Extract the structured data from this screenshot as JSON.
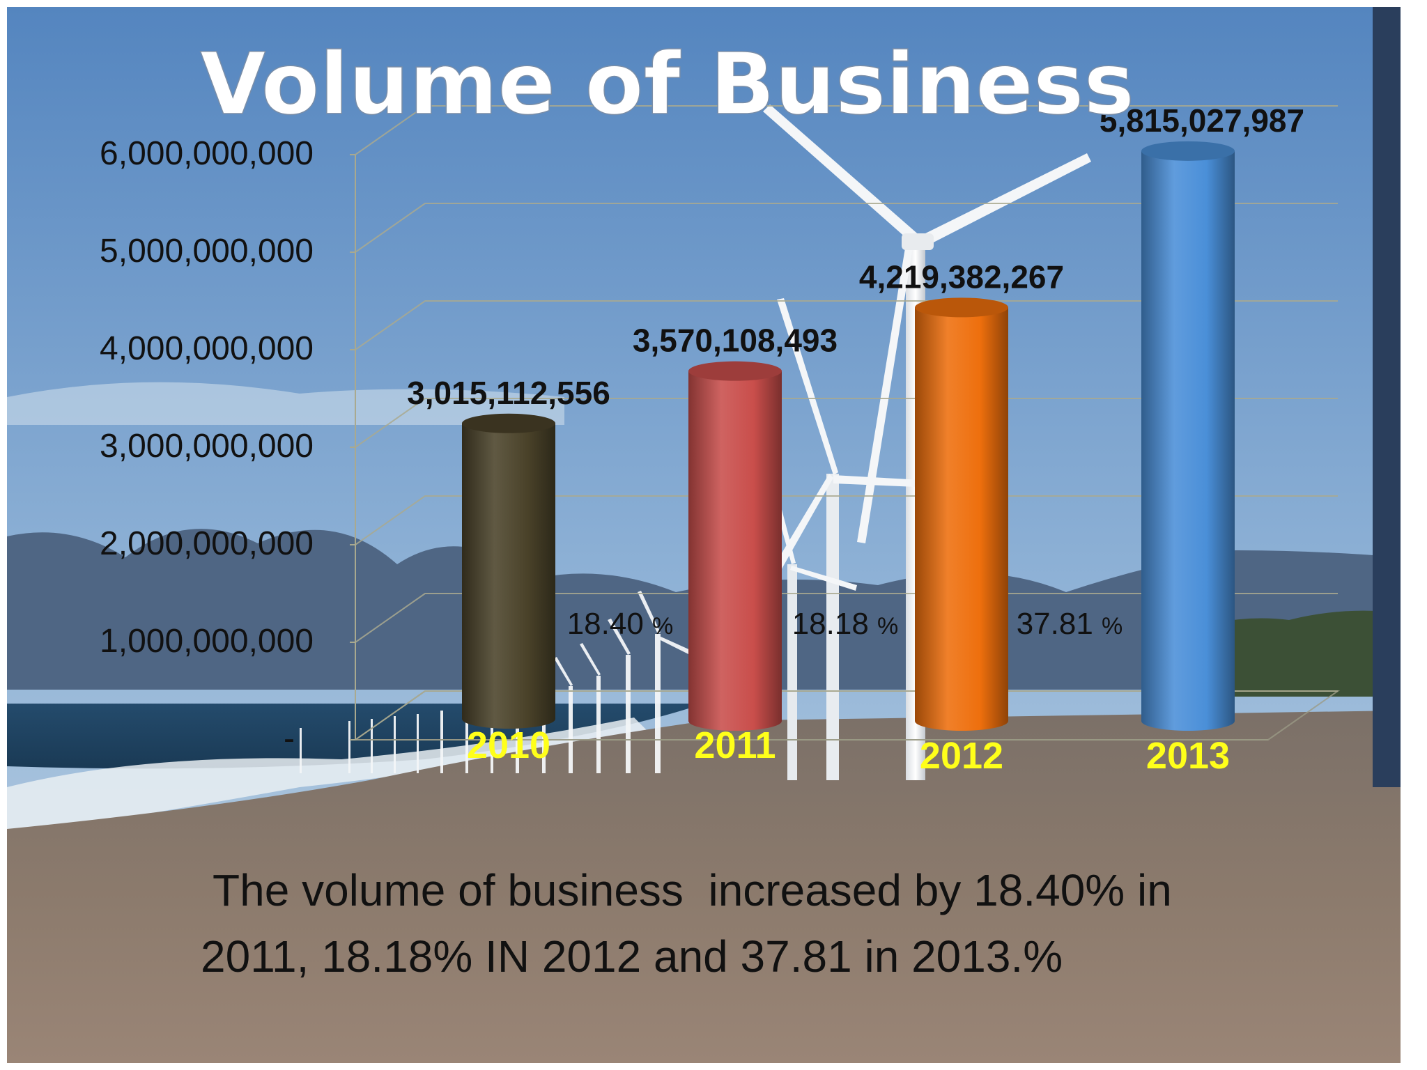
{
  "slide": {
    "title": "Volume of Business",
    "caption_line1": "The volume of business  increased by 18.40% in",
    "caption_line2": "2011, 18.18% IN 2012 and 37.81 in 2013.%"
  },
  "colors": {
    "sky_top": "#5d8fc4",
    "sky_bottom": "#b7cfe2",
    "mountains": "#4e6683",
    "sea": "#1f4566",
    "beach": "#857468",
    "title_text": "#ffffff",
    "year_label": "#ffff1a",
    "value_label": "#111111"
  },
  "chart_data": {
    "type": "bar",
    "style": "3d-cylinder",
    "title": "",
    "categories": [
      "2010",
      "2011",
      "2012",
      "2013"
    ],
    "series": [
      {
        "values": [
          3015112556,
          3570108493,
          4219382267,
          5815027987
        ],
        "colors": [
          "#4a4229",
          "#c94e4b",
          "#ee6f0d",
          "#4a8fd8"
        ]
      }
    ],
    "value_labels": [
      "3,015,112,556",
      "3,570,108,493",
      "4,219,382,267",
      "5,815,027,987"
    ],
    "growth_labels": [
      {
        "value": "18.40",
        "unit": "%"
      },
      {
        "value": "18.18",
        "unit": "%"
      },
      {
        "value": "37.81",
        "unit": "%"
      }
    ],
    "y_ticks": [
      0,
      1000000000,
      2000000000,
      3000000000,
      4000000000,
      5000000000,
      6000000000
    ],
    "y_tick_labels": [
      "-",
      "1,000,000,000",
      "2,000,000,000",
      "3,000,000,000",
      "4,000,000,000",
      "5,000,000,000",
      "6,000,000,000"
    ],
    "ylim": [
      0,
      6000000000
    ],
    "xlabel": "",
    "ylabel": "",
    "grid": true,
    "legend": "none"
  }
}
